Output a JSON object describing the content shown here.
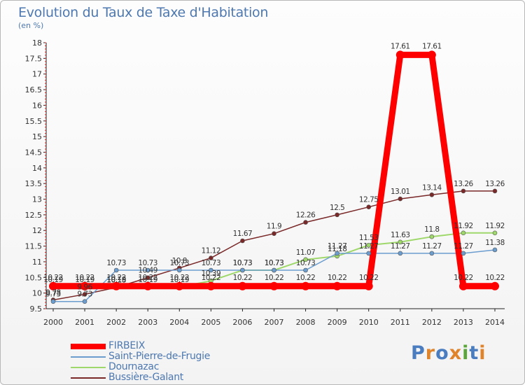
{
  "title": "Evolution du Taux de Taxe d'Habitation",
  "subtitle": "(en %)",
  "logo": {
    "text": "Proxiti",
    "letter_colors": [
      "#4a7cc0",
      "#e0842c",
      "#4a7cc0",
      "#e0842c",
      "#5aa63a",
      "#4a7cc0",
      "#e0842c"
    ]
  },
  "chart_data": {
    "type": "line",
    "xlabel": "",
    "ylabel": "",
    "x": [
      "2000",
      "2001",
      "2002",
      "2003",
      "2004",
      "2005",
      "2006",
      "2007",
      "2008",
      "2009",
      "2010",
      "2011",
      "2012",
      "2013",
      "2014"
    ],
    "ylim": [
      9.5,
      18
    ],
    "yticks": [
      "9.5",
      "10",
      "10.5",
      "11",
      "11.5",
      "12",
      "12.5",
      "13",
      "13.5",
      "14",
      "14.5",
      "15",
      "15.5",
      "16",
      "16.5",
      "17",
      "17.5",
      "18"
    ],
    "grid": false,
    "legend_position": "bottom-left",
    "series": [
      {
        "name": "FIRBEIX",
        "color": "#ff0000",
        "values": [
          10.22,
          10.22,
          10.22,
          10.22,
          10.22,
          10.22,
          10.22,
          10.22,
          10.22,
          10.22,
          10.22,
          17.61,
          17.61,
          10.22,
          10.22
        ],
        "labels": [
          "10.22",
          "10.22",
          "10.22",
          "10.22",
          "10.22",
          "10.22",
          "10.22",
          "10.22",
          "10.22",
          "10.22",
          "10.22",
          "17.61",
          "17.61",
          "10.22",
          "10.22"
        ]
      },
      {
        "name": "Saint-Pierre-de-Frugie",
        "color": "#6b9dcf",
        "values": [
          9.73,
          9.73,
          10.73,
          10.73,
          10.73,
          10.73,
          10.73,
          10.73,
          10.73,
          11.27,
          11.27,
          11.27,
          11.27,
          11.27,
          11.38
        ],
        "labels": [
          "9.73",
          "9.73",
          "10.73",
          "10.73",
          "10.73",
          "10.73",
          "10.73",
          "10.73",
          "10.73",
          "11.27",
          "11.27",
          "11.27",
          "11.27",
          "11.27",
          "11.38"
        ]
      },
      {
        "name": "Dournazac",
        "color": "#9fd86a",
        "values": [
          10.19,
          10.19,
          10.19,
          10.19,
          10.19,
          10.39,
          10.73,
          10.73,
          11.07,
          11.18,
          11.53,
          11.63,
          11.8,
          11.92,
          11.92
        ],
        "labels": [
          "10.19",
          "10.19",
          "10.19",
          "10.19",
          "10.19",
          "10.39",
          "10.73",
          "10.73",
          "11.07",
          "11.18",
          "11.53",
          "11.63",
          "11.8",
          "11.92",
          "11.92"
        ]
      },
      {
        "name": "Bussière-Galant",
        "color": "#7a2828",
        "values": [
          9.78,
          9.96,
          10.18,
          10.49,
          10.8,
          11.12,
          11.67,
          11.9,
          12.26,
          12.5,
          12.75,
          13.01,
          13.14,
          13.26,
          13.26
        ],
        "labels": [
          "9.78",
          "9.96",
          "10.18",
          "10.49",
          "10.8",
          "11.12",
          "11.67",
          "11.9",
          "12.26",
          "12.5",
          "12.75",
          "13.01",
          "13.14",
          "13.26",
          "13.26"
        ]
      }
    ]
  }
}
